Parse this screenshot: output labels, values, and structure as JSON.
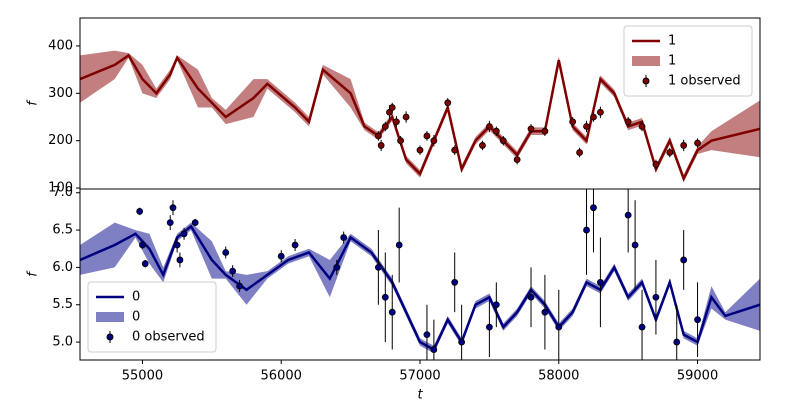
{
  "chart_data": [
    {
      "type": "line",
      "ylabel": "f",
      "xlim": [
        54550,
        59450
      ],
      "ylim": [
        98,
        459
      ],
      "yticks": [
        100,
        200,
        300,
        400
      ],
      "legend": "upper right",
      "series": [
        {
          "name": "1",
          "kind": "line",
          "color": "#800000",
          "x": [
            54550,
            54800,
            54900,
            55000,
            55100,
            55200,
            55250,
            55400,
            55500,
            55600,
            55800,
            55900,
            56100,
            56200,
            56300,
            56500,
            56600,
            56700,
            56800,
            56900,
            57000,
            57100,
            57200,
            57300,
            57400,
            57500,
            57600,
            57700,
            57800,
            57900,
            58000,
            58100,
            58200,
            58300,
            58400,
            58500,
            58600,
            58700,
            58800,
            58900,
            59000,
            59100,
            59450
          ],
          "values": [
            330,
            360,
            380,
            330,
            300,
            340,
            375,
            310,
            280,
            250,
            290,
            320,
            270,
            240,
            350,
            300,
            230,
            210,
            250,
            160,
            130,
            200,
            270,
            140,
            200,
            230,
            200,
            170,
            220,
            220,
            370,
            230,
            200,
            330,
            300,
            230,
            240,
            140,
            200,
            120,
            180,
            200,
            225
          ]
        },
        {
          "name": "1",
          "kind": "band",
          "color": "#a33b3b",
          "x": [
            54550,
            54800,
            54900,
            55000,
            55100,
            55200,
            55250,
            55400,
            55500,
            55600,
            55800,
            55900,
            56100,
            56200,
            56300,
            56500,
            56600,
            56700,
            56800,
            56900,
            57000,
            57100,
            57200,
            57300,
            57400,
            57500,
            57600,
            57700,
            57800,
            57900,
            58000,
            58100,
            58200,
            58300,
            58400,
            58500,
            58600,
            58700,
            58800,
            58900,
            59000,
            59100,
            59450
          ],
          "lower": [
            280,
            330,
            375,
            300,
            290,
            330,
            370,
            270,
            270,
            235,
            250,
            310,
            260,
            230,
            340,
            270,
            222,
            202,
            242,
            152,
            122,
            192,
            262,
            132,
            192,
            222,
            192,
            162,
            212,
            212,
            362,
            222,
            192,
            322,
            292,
            222,
            232,
            132,
            192,
            112,
            172,
            180,
            165
          ],
          "upper": [
            380,
            390,
            385,
            360,
            310,
            350,
            380,
            350,
            290,
            265,
            330,
            330,
            280,
            250,
            360,
            330,
            238,
            218,
            258,
            168,
            138,
            208,
            278,
            148,
            208,
            238,
            208,
            178,
            228,
            228,
            378,
            238,
            208,
            338,
            308,
            238,
            248,
            148,
            208,
            128,
            188,
            220,
            285
          ]
        },
        {
          "name": "1 observed",
          "kind": "errorbar",
          "color": "#800000",
          "x": [
            56700,
            56720,
            56750,
            56780,
            56800,
            56830,
            56860,
            56900,
            57000,
            57050,
            57100,
            57200,
            57250,
            57450,
            57500,
            57550,
            57600,
            57700,
            57800,
            57900,
            58100,
            58150,
            58200,
            58250,
            58300,
            58500,
            58600,
            58700,
            58800,
            58900,
            59000
          ],
          "values": [
            210,
            190,
            230,
            260,
            270,
            240,
            200,
            250,
            180,
            210,
            200,
            280,
            180,
            190,
            230,
            220,
            200,
            160,
            225,
            220,
            240,
            175,
            230,
            250,
            260,
            240,
            230,
            150,
            175,
            190,
            195
          ],
          "errors": [
            10,
            12,
            10,
            15,
            10,
            12,
            10,
            12,
            10,
            10,
            12,
            10,
            10,
            10,
            12,
            10,
            10,
            10,
            10,
            10,
            10,
            10,
            12,
            10,
            12,
            10,
            10,
            10,
            10,
            12,
            10
          ]
        }
      ]
    },
    {
      "type": "line",
      "ylabel": "f",
      "xlabel": "t",
      "xlim": [
        54550,
        59450
      ],
      "ylim": [
        4.76,
        7.05
      ],
      "xticks": [
        55000,
        56000,
        57000,
        58000,
        59000
      ],
      "yticks": [
        {
          "value": 5.0,
          "label": "5.0"
        },
        5.5,
        {
          "value": 6.0,
          "label": "6.0"
        },
        6.5,
        {
          "value": 7.0,
          "label": "7.0"
        }
      ],
      "legend": "lower left",
      "series": [
        {
          "name": "0",
          "kind": "line",
          "color": "#000080",
          "x": [
            54550,
            54800,
            54950,
            55050,
            55150,
            55250,
            55350,
            55500,
            55600,
            55750,
            55900,
            56050,
            56200,
            56350,
            56500,
            56650,
            56800,
            56900,
            57000,
            57100,
            57200,
            57300,
            57400,
            57500,
            57600,
            57700,
            57800,
            57900,
            58000,
            58100,
            58200,
            58300,
            58400,
            58500,
            58600,
            58700,
            58800,
            58900,
            59000,
            59100,
            59200,
            59450
          ],
          "values": [
            6.1,
            6.3,
            6.45,
            6.25,
            5.9,
            6.4,
            6.55,
            6.1,
            5.9,
            5.7,
            5.9,
            6.1,
            6.2,
            5.85,
            6.4,
            6.2,
            5.8,
            5.4,
            5.0,
            4.9,
            5.3,
            5.0,
            5.5,
            5.6,
            5.2,
            5.4,
            5.7,
            5.5,
            5.2,
            5.4,
            5.8,
            5.7,
            6.0,
            5.6,
            5.8,
            5.3,
            5.8,
            5.1,
            5.0,
            5.6,
            5.35,
            5.5
          ]
        },
        {
          "name": "0",
          "kind": "band",
          "color": "#3b3ba3",
          "x": [
            54550,
            54800,
            54950,
            55050,
            55150,
            55250,
            55350,
            55500,
            55600,
            55750,
            55900,
            56050,
            56200,
            56350,
            56500,
            56650,
            56800,
            56900,
            57000,
            57100,
            57200,
            57300,
            57400,
            57500,
            57600,
            57700,
            57800,
            57900,
            58000,
            58100,
            58200,
            58300,
            58400,
            58500,
            58600,
            58700,
            58800,
            58900,
            59000,
            59100,
            59200,
            59450
          ],
          "lower": [
            5.9,
            6.0,
            6.4,
            6.05,
            5.8,
            6.35,
            6.5,
            5.85,
            5.85,
            5.5,
            5.85,
            6.05,
            6.15,
            5.6,
            6.35,
            6.15,
            5.75,
            5.35,
            4.95,
            4.85,
            5.25,
            4.95,
            5.45,
            5.55,
            5.15,
            5.35,
            5.65,
            5.45,
            5.15,
            5.35,
            5.75,
            5.65,
            5.95,
            5.55,
            5.75,
            5.25,
            5.75,
            5.05,
            4.95,
            5.45,
            5.3,
            5.15
          ],
          "upper": [
            6.3,
            6.6,
            6.5,
            6.45,
            6.0,
            6.45,
            6.6,
            6.35,
            5.95,
            5.9,
            5.95,
            6.15,
            6.25,
            6.1,
            6.45,
            6.25,
            5.85,
            5.45,
            5.05,
            4.95,
            5.35,
            5.05,
            5.55,
            5.65,
            5.25,
            5.45,
            5.75,
            5.55,
            5.25,
            5.45,
            5.85,
            5.75,
            6.05,
            5.65,
            5.85,
            5.35,
            5.85,
            5.15,
            5.05,
            5.75,
            5.4,
            5.85
          ]
        },
        {
          "name": "0 observed",
          "kind": "errorbar",
          "color": "#000080",
          "x": [
            54980,
            55000,
            55020,
            55200,
            55220,
            55250,
            55270,
            55300,
            55380,
            55600,
            55650,
            55700,
            56000,
            56100,
            56400,
            56450,
            56700,
            56750,
            56800,
            56850,
            57050,
            57100,
            57250,
            57300,
            57500,
            57550,
            57800,
            57900,
            58000,
            58200,
            58250,
            58300,
            58500,
            58550,
            58600,
            58700,
            58850,
            58900,
            59000
          ],
          "values": [
            6.75,
            6.3,
            6.05,
            6.6,
            6.8,
            6.3,
            6.1,
            6.45,
            6.6,
            6.2,
            5.95,
            5.75,
            6.15,
            6.3,
            6.0,
            6.4,
            6.0,
            5.6,
            5.4,
            6.3,
            5.1,
            4.9,
            5.8,
            5.0,
            5.2,
            5.5,
            5.6,
            5.4,
            5.2,
            6.5,
            6.8,
            5.8,
            6.7,
            6.3,
            5.2,
            5.6,
            5.0,
            6.1,
            5.3
          ],
          "errors": [
            0.05,
            0.05,
            0.05,
            0.1,
            0.1,
            0.1,
            0.1,
            0.08,
            0.05,
            0.08,
            0.08,
            0.08,
            0.08,
            0.08,
            0.1,
            0.08,
            0.5,
            0.6,
            0.5,
            0.5,
            0.4,
            0.4,
            0.4,
            0.5,
            0.4,
            0.3,
            0.4,
            0.5,
            0.5,
            0.6,
            0.6,
            0.6,
            0.5,
            0.6,
            0.5,
            0.5,
            0.5,
            0.4,
            0.5
          ]
        }
      ]
    }
  ]
}
